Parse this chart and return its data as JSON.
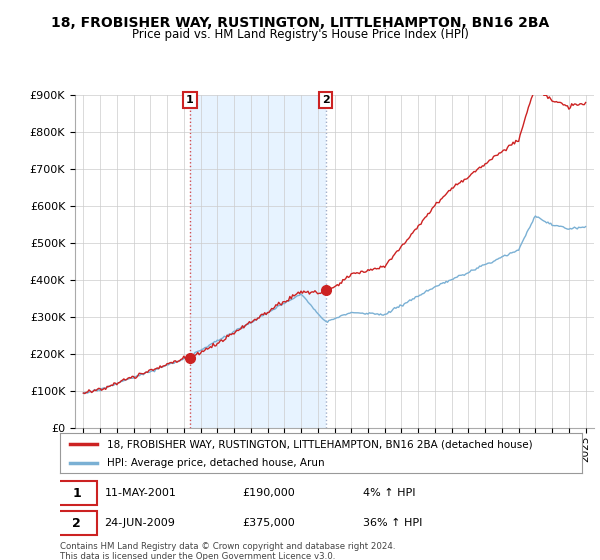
{
  "title_line1": "18, FROBISHER WAY, RUSTINGTON, LITTLEHAMPTON, BN16 2BA",
  "title_line2": "Price paid vs. HM Land Registry's House Price Index (HPI)",
  "ylim": [
    0,
    900000
  ],
  "yticks": [
    0,
    100000,
    200000,
    300000,
    400000,
    500000,
    600000,
    700000,
    800000,
    900000
  ],
  "ytick_labels": [
    "£0",
    "£100K",
    "£200K",
    "£300K",
    "£400K",
    "£500K",
    "£600K",
    "£700K",
    "£800K",
    "£900K"
  ],
  "sale1_date": 2001.37,
  "sale1_price": 190000,
  "sale1_label": "1",
  "sale1_text": "11-MAY-2001",
  "sale1_price_text": "£190,000",
  "sale1_hpi_text": "4% ↑ HPI",
  "sale2_date": 2009.48,
  "sale2_price": 375000,
  "sale2_label": "2",
  "sale2_text": "24-JUN-2009",
  "sale2_price_text": "£375,000",
  "sale2_hpi_text": "36% ↑ HPI",
  "hpi_color": "#7ab0d4",
  "sale_color": "#cc2222",
  "shade_color": "#ddeeff",
  "legend_label1": "18, FROBISHER WAY, RUSTINGTON, LITTLEHAMPTON, BN16 2BA (detached house)",
  "legend_label2": "HPI: Average price, detached house, Arun",
  "footer_text": "Contains HM Land Registry data © Crown copyright and database right 2024.\nThis data is licensed under the Open Government Licence v3.0.",
  "background_color": "#ffffff",
  "grid_color": "#cccccc",
  "xmin": 1994.5,
  "xmax": 2025.5,
  "xticks": [
    1995,
    1996,
    1997,
    1998,
    1999,
    2000,
    2001,
    2002,
    2003,
    2004,
    2005,
    2006,
    2007,
    2008,
    2009,
    2010,
    2011,
    2012,
    2013,
    2014,
    2015,
    2016,
    2017,
    2018,
    2019,
    2020,
    2021,
    2022,
    2023,
    2024,
    2025
  ]
}
